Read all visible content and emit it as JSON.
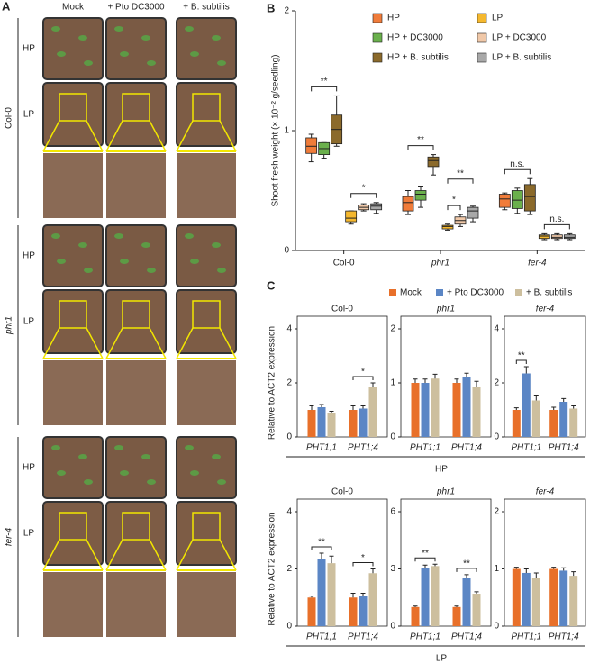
{
  "panel_a": {
    "label": "A",
    "columns": [
      "Mock",
      "+ Pto DC3000",
      "+ B. subtilis"
    ],
    "genotypes": [
      "Col-0",
      "phr1",
      "fer-4"
    ],
    "rows": [
      "HP",
      "LP"
    ]
  },
  "chart_data": [
    {
      "type": "box",
      "panel": "B",
      "ylabel": "Shoot fresh weight (× 10⁻² g/seedling)",
      "categories": [
        "Col-0",
        "phr1",
        "fer-4"
      ],
      "ylim": [
        0,
        2
      ],
      "yticks": [
        0,
        1,
        2
      ],
      "legend": "top-right",
      "series": [
        {
          "name": "HP",
          "color": "#f07c3a",
          "min": [
            0.74,
            0.3,
            0.34
          ],
          "q1": [
            0.81,
            0.33,
            0.36
          ],
          "median": [
            0.87,
            0.4,
            0.43
          ],
          "q3": [
            0.94,
            0.45,
            0.47
          ],
          "max": [
            0.97,
            0.5,
            0.48
          ]
        },
        {
          "name": "HP + DC3000",
          "color": "#6ab04c",
          "min": [
            0.77,
            0.36,
            0.31
          ],
          "q1": [
            0.8,
            0.42,
            0.35
          ],
          "median": [
            0.85,
            0.47,
            0.42
          ],
          "q3": [
            0.9,
            0.5,
            0.5
          ],
          "max": [
            0.9,
            0.53,
            0.52
          ]
        },
        {
          "name": "HP + B. subtilis",
          "color": "#8b6a2b",
          "min": [
            0.87,
            0.63,
            0.3
          ],
          "q1": [
            0.89,
            0.7,
            0.33
          ],
          "median": [
            1.01,
            0.75,
            0.45
          ],
          "q3": [
            1.13,
            0.78,
            0.55
          ],
          "max": [
            1.29,
            0.8,
            0.6
          ]
        },
        {
          "name": "LP",
          "color": "#f5b82e",
          "min": [
            0.22,
            0.17,
            0.09
          ],
          "q1": [
            0.24,
            0.18,
            0.1
          ],
          "median": [
            0.27,
            0.2,
            0.12
          ],
          "q3": [
            0.33,
            0.21,
            0.13
          ],
          "max": [
            0.33,
            0.22,
            0.14
          ]
        },
        {
          "name": "LP + DC3000",
          "color": "#f0c8a8",
          "min": [
            0.33,
            0.2,
            0.09
          ],
          "q1": [
            0.34,
            0.22,
            0.1
          ],
          "median": [
            0.36,
            0.25,
            0.11
          ],
          "q3": [
            0.38,
            0.28,
            0.13
          ],
          "max": [
            0.39,
            0.3,
            0.14
          ]
        },
        {
          "name": "LP + B. subtilis",
          "color": "#a8a8a8",
          "min": [
            0.31,
            0.24,
            0.09
          ],
          "q1": [
            0.34,
            0.27,
            0.1
          ],
          "median": [
            0.37,
            0.33,
            0.11
          ],
          "q3": [
            0.39,
            0.36,
            0.13
          ],
          "max": [
            0.4,
            0.37,
            0.14
          ]
        }
      ],
      "annotations": [
        "**",
        "*",
        "**",
        "*",
        "**",
        "n.s.",
        "n.s."
      ]
    },
    {
      "type": "bar",
      "panel": "C",
      "title": "Col-0",
      "group": "HP",
      "ylabel": "Relative to ACT2 expression",
      "categories": [
        "PHT1;1",
        "PHT1;4"
      ],
      "ylim": [
        0,
        4
      ],
      "yticks": [
        0,
        2,
        4
      ],
      "series": [
        {
          "name": "Mock",
          "color": "#e8702a",
          "values": [
            1.0,
            1.0
          ],
          "errors": [
            0.15,
            0.15
          ]
        },
        {
          "name": "+ Pto DC3000",
          "color": "#5b86c5",
          "values": [
            1.1,
            1.05
          ],
          "errors": [
            0.1,
            0.1
          ]
        },
        {
          "name": "+ B. subtilis",
          "color": "#cdbf9e",
          "values": [
            0.9,
            1.85
          ],
          "errors": [
            0.05,
            0.15
          ]
        }
      ],
      "annotations": [
        "*"
      ]
    },
    {
      "type": "bar",
      "title": "phr1",
      "categories": [
        "PHT1;1",
        "PHT1;4"
      ],
      "ylim": [
        0,
        2
      ],
      "yticks": [
        0,
        1,
        2
      ],
      "series": [
        {
          "name": "Mock",
          "color": "#e8702a",
          "values": [
            1.0,
            1.0
          ],
          "errors": [
            0.07,
            0.07
          ]
        },
        {
          "name": "+ Pto DC3000",
          "color": "#5b86c5",
          "values": [
            1.0,
            1.1
          ],
          "errors": [
            0.07,
            0.08
          ]
        },
        {
          "name": "+ B. subtilis",
          "color": "#cdbf9e",
          "values": [
            1.08,
            0.93
          ],
          "errors": [
            0.08,
            0.1
          ]
        }
      ],
      "annotations": []
    },
    {
      "type": "bar",
      "title": "fer-4",
      "categories": [
        "PHT1;1",
        "PHT1;4"
      ],
      "ylim": [
        0,
        4
      ],
      "yticks": [
        0,
        2,
        4
      ],
      "series": [
        {
          "name": "Mock",
          "color": "#e8702a",
          "values": [
            1.0,
            1.0
          ],
          "errors": [
            0.08,
            0.1
          ]
        },
        {
          "name": "+ Pto DC3000",
          "color": "#5b86c5",
          "values": [
            2.35,
            1.3
          ],
          "errors": [
            0.25,
            0.12
          ]
        },
        {
          "name": "+ B. subtilis",
          "color": "#cdbf9e",
          "values": [
            1.35,
            1.05
          ],
          "errors": [
            0.2,
            0.1
          ]
        }
      ],
      "annotations": [
        "**"
      ]
    },
    {
      "type": "bar",
      "title": "Col-0",
      "group": "LP",
      "ylabel": "Relative to ACT2 expression",
      "categories": [
        "PHT1;1",
        "PHT1;4"
      ],
      "ylim": [
        0,
        4
      ],
      "yticks": [
        0,
        2,
        4
      ],
      "series": [
        {
          "name": "Mock",
          "color": "#e8702a",
          "values": [
            1.0,
            1.0
          ],
          "errors": [
            0.05,
            0.15
          ]
        },
        {
          "name": "+ Pto DC3000",
          "color": "#5b86c5",
          "values": [
            2.35,
            1.05
          ],
          "errors": [
            0.2,
            0.1
          ]
        },
        {
          "name": "+ B. subtilis",
          "color": "#cdbf9e",
          "values": [
            2.2,
            1.85
          ],
          "errors": [
            0.25,
            0.15
          ]
        }
      ],
      "annotations": [
        "**",
        "*"
      ]
    },
    {
      "type": "bar",
      "title": "phr1",
      "categories": [
        "PHT1;1",
        "PHT1;4"
      ],
      "ylim": [
        0,
        6
      ],
      "yticks": [
        0,
        3,
        6
      ],
      "series": [
        {
          "name": "Mock",
          "color": "#e8702a",
          "values": [
            1.0,
            1.0
          ],
          "errors": [
            0.05,
            0.05
          ]
        },
        {
          "name": "+ Pto DC3000",
          "color": "#5b86c5",
          "values": [
            3.05,
            2.55
          ],
          "errors": [
            0.15,
            0.15
          ]
        },
        {
          "name": "+ B. subtilis",
          "color": "#cdbf9e",
          "values": [
            3.15,
            1.7
          ],
          "errors": [
            0.1,
            0.1
          ]
        }
      ],
      "annotations": [
        "**",
        "**"
      ]
    },
    {
      "type": "bar",
      "title": "fer-4",
      "categories": [
        "PHT1;1",
        "PHT1;4"
      ],
      "ylim": [
        0,
        2
      ],
      "yticks": [
        0,
        1,
        2
      ],
      "series": [
        {
          "name": "Mock",
          "color": "#e8702a",
          "values": [
            1.0,
            1.0
          ],
          "errors": [
            0.03,
            0.03
          ]
        },
        {
          "name": "+ Pto DC3000",
          "color": "#5b86c5",
          "values": [
            0.93,
            0.97
          ],
          "errors": [
            0.07,
            0.05
          ]
        },
        {
          "name": "+ B. subtilis",
          "color": "#cdbf9e",
          "values": [
            0.85,
            0.88
          ],
          "errors": [
            0.08,
            0.07
          ]
        }
      ],
      "annotations": []
    }
  ]
}
